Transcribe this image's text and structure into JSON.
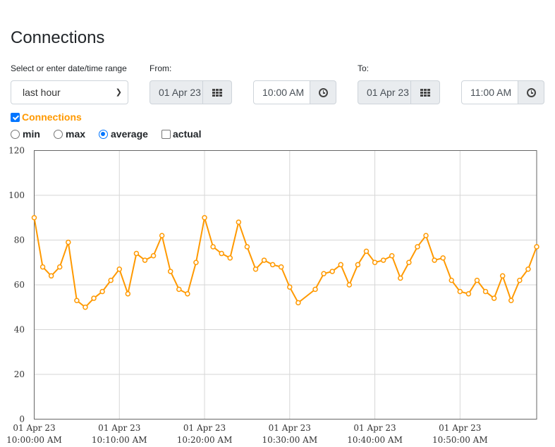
{
  "page": {
    "title": "Connections"
  },
  "range": {
    "label": "Select or enter date/time range",
    "selected": "last hour"
  },
  "from": {
    "label": "From:",
    "date": "01 Apr 23",
    "time": "10:00 AM"
  },
  "to": {
    "label": "To:",
    "date": "01 Apr 23",
    "time": "11:00 AM"
  },
  "series_toggle": {
    "label": "Connections",
    "checked": true,
    "color": "#ff9900"
  },
  "stats": [
    {
      "label": "min",
      "type": "radio",
      "checked": false
    },
    {
      "label": "max",
      "type": "radio",
      "checked": false
    },
    {
      "label": "average",
      "type": "radio",
      "checked": true
    },
    {
      "label": "actual",
      "type": "checkbox",
      "checked": false
    }
  ],
  "colors": {
    "line": "#ff9900",
    "grid": "#d6d6d6",
    "accent": "#0075ff"
  },
  "chart_data": {
    "type": "line",
    "title": "",
    "xlabel": "",
    "ylabel": "",
    "ylim": [
      0,
      120
    ],
    "yticks": [
      0,
      20,
      40,
      60,
      80,
      100,
      120
    ],
    "xlim": [
      0,
      59
    ],
    "xticks": [
      {
        "value": 0,
        "date": "01 Apr 23",
        "time": "10:00:00 AM"
      },
      {
        "value": 10,
        "date": "01 Apr 23",
        "time": "10:10:00 AM"
      },
      {
        "value": 20,
        "date": "01 Apr 23",
        "time": "10:20:00 AM"
      },
      {
        "value": 30,
        "date": "01 Apr 23",
        "time": "10:30:00 AM"
      },
      {
        "value": 40,
        "date": "01 Apr 23",
        "time": "10:40:00 AM"
      },
      {
        "value": 50,
        "date": "01 Apr 23",
        "time": "10:50:00 AM"
      }
    ],
    "grid": true,
    "series": [
      {
        "name": "Connections",
        "color": "#ff9900",
        "points": [
          [
            0,
            90
          ],
          [
            1,
            68
          ],
          [
            2,
            64
          ],
          [
            3,
            68
          ],
          [
            4,
            79
          ],
          [
            5,
            53
          ],
          [
            6,
            50
          ],
          [
            7,
            54
          ],
          [
            8,
            57
          ],
          [
            9,
            62
          ],
          [
            10,
            67
          ],
          [
            11,
            56
          ],
          [
            12,
            74
          ],
          [
            13,
            71
          ],
          [
            14,
            73
          ],
          [
            15,
            82
          ],
          [
            16,
            66
          ],
          [
            17,
            58
          ],
          [
            18,
            56
          ],
          [
            19,
            70
          ],
          [
            20,
            90
          ],
          [
            21,
            77
          ],
          [
            22,
            74
          ],
          [
            23,
            72
          ],
          [
            24,
            88
          ],
          [
            25,
            77
          ],
          [
            26,
            67
          ],
          [
            27,
            71
          ],
          [
            28,
            69
          ],
          [
            29,
            68
          ],
          [
            30,
            59
          ],
          [
            31,
            52
          ],
          [
            33,
            58
          ],
          [
            34,
            65
          ],
          [
            35,
            66
          ],
          [
            36,
            69
          ],
          [
            37,
            60
          ],
          [
            38,
            69
          ],
          [
            39,
            75
          ],
          [
            40,
            70
          ],
          [
            41,
            71
          ],
          [
            42,
            73
          ],
          [
            43,
            63
          ],
          [
            44,
            70
          ],
          [
            45,
            77
          ],
          [
            46,
            82
          ],
          [
            47,
            71
          ],
          [
            48,
            72
          ],
          [
            49,
            62
          ],
          [
            50,
            57
          ],
          [
            51,
            56
          ],
          [
            52,
            62
          ],
          [
            53,
            57
          ],
          [
            54,
            54
          ],
          [
            55,
            64
          ],
          [
            56,
            53
          ],
          [
            57,
            62
          ],
          [
            58,
            67
          ],
          [
            59,
            77
          ]
        ]
      }
    ]
  }
}
